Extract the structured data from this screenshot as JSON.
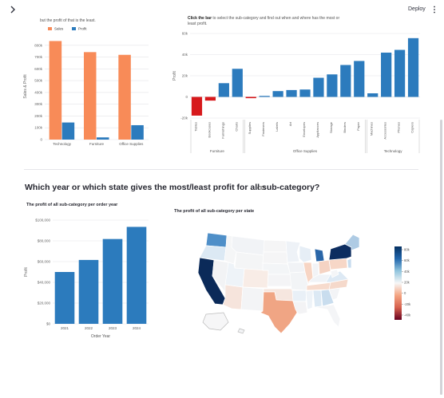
{
  "header": {
    "deploy_label": "Deploy"
  },
  "section1": {
    "left_caption": "but the profit of that is the least.",
    "right_caption_bold": "Click the bar",
    "right_caption_rest": " to select the sub-category and find out when and where has the most or least profit."
  },
  "section2": {
    "heading": "Which year or which state gives the most/least profit for all sub-category?",
    "year_chart_title": "The profit of all sub-category per order year",
    "map_title": "The profit of all sub-category per state"
  },
  "chart_data": [
    {
      "type": "bar",
      "categories": [
        "Technology",
        "Furniture",
        "Office Supplies"
      ],
      "series": [
        {
          "name": "Sales",
          "values": [
            836000,
            742000,
            719000
          ]
        },
        {
          "name": "Profit",
          "values": [
            145000,
            18500,
            122000
          ]
        }
      ],
      "ylabel": "Sales & Profit",
      "yticks": [
        "0",
        "100k",
        "200k",
        "300k",
        "400k",
        "500k",
        "600k",
        "700k",
        "800k"
      ],
      "ylim": [
        0,
        900000
      ],
      "legend": "top-left",
      "colors": {
        "Sales": "#f88b58",
        "Profit": "#2c7bbd"
      }
    },
    {
      "type": "bar",
      "ylabel": "Profit",
      "ylim": [
        -20000,
        60000
      ],
      "yticks": [
        "-20k",
        "0",
        "20k",
        "40k",
        "60k"
      ],
      "bars": [
        {
          "label": "Tables",
          "group": "Furniture",
          "value": -17700,
          "color": "#d7191c"
        },
        {
          "label": "Bookcases",
          "group": "Furniture",
          "value": -3500,
          "color": "#d7191c"
        },
        {
          "label": "Furnishings",
          "group": "Furniture",
          "value": 13000,
          "color": "#2c7bbd"
        },
        {
          "label": "Chairs",
          "group": "Furniture",
          "value": 26600,
          "color": "#2c7bbd"
        },
        {
          "label": "Supplies",
          "group": "Office Supplies",
          "value": -1200,
          "color": "#d7191c"
        },
        {
          "label": "Fasteners",
          "group": "Office Supplies",
          "value": 950,
          "color": "#2c7bbd"
        },
        {
          "label": "Labels",
          "group": "Office Supplies",
          "value": 5500,
          "color": "#2c7bbd"
        },
        {
          "label": "Art",
          "group": "Office Supplies",
          "value": 6500,
          "color": "#2c7bbd"
        },
        {
          "label": "Envelopes",
          "group": "Office Supplies",
          "value": 7000,
          "color": "#2c7bbd"
        },
        {
          "label": "Appliances",
          "group": "Office Supplies",
          "value": 18100,
          "color": "#2c7bbd"
        },
        {
          "label": "Storage",
          "group": "Office Supplies",
          "value": 21300,
          "color": "#2c7bbd"
        },
        {
          "label": "Binders",
          "group": "Office Supplies",
          "value": 30200,
          "color": "#2c7bbd"
        },
        {
          "label": "Paper",
          "group": "Office Supplies",
          "value": 34000,
          "color": "#2c7bbd"
        },
        {
          "label": "Machines",
          "group": "Technology",
          "value": 3400,
          "color": "#2c7bbd"
        },
        {
          "label": "Accessories",
          "group": "Technology",
          "value": 41900,
          "color": "#2c7bbd"
        },
        {
          "label": "Phones",
          "group": "Technology",
          "value": 44500,
          "color": "#2c7bbd"
        },
        {
          "label": "Copiers",
          "group": "Technology",
          "value": 55600,
          "color": "#2c7bbd"
        }
      ],
      "groups": [
        "Furniture",
        "Office Supplies",
        "Technology"
      ]
    },
    {
      "type": "bar",
      "categories": [
        "2021",
        "2022",
        "2023",
        "2024"
      ],
      "values": [
        50000,
        61600,
        81800,
        93500
      ],
      "xlabel": "Order Year",
      "ylabel": "Profit",
      "yticks": [
        "$0",
        "$20,000",
        "$40,000",
        "$60,000",
        "$80,000",
        "$100,000"
      ],
      "ylim": [
        0,
        100000
      ],
      "color": "#2c7bbd"
    },
    {
      "type": "heatmap",
      "colorbar_ticks": [
        "-40k",
        "-20k",
        "0",
        "20k",
        "40k",
        "60k",
        "80k"
      ],
      "colorbar_ticks_full": [
        "-40k",
        "-20k",
        "0",
        "20k",
        "40k",
        "60k",
        "80k"
      ],
      "colorscale": [
        "#67001f",
        "#d6604d",
        "#f4a582",
        "#f7f7f7",
        "#92c5de",
        "#2166ac",
        "#053061"
      ]
    }
  ]
}
